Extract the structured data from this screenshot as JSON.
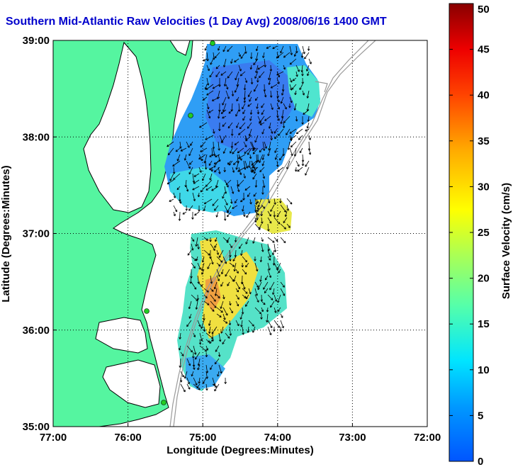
{
  "title": "Southern Mid-Atlantic Raw Velocities (1 Day Avg) 2008/06/16 1400 GMT",
  "map": {
    "xlabel": "Longitude (Degrees:Minutes)",
    "ylabel": "Latitude (Degrees:Minutes)",
    "lon_range": [
      -77,
      -72
    ],
    "lat_range": [
      35,
      39
    ],
    "lon_ticks": [
      "77:00",
      "76:00",
      "75:00",
      "74:00",
      "73:00",
      "72:00"
    ],
    "lat_ticks": [
      "35:00",
      "36:00",
      "37:00",
      "38:00",
      "39:00"
    ],
    "grid": "dotted",
    "colors": {
      "land": "#55f5a0",
      "water": "#ffffff",
      "coast": "#000000",
      "bathymetry": "#999999",
      "station": "#22cc22"
    }
  },
  "colorbar": {
    "label": "Surface Velocity (cm/s)",
    "min": 0,
    "max": 50,
    "ticks": [
      "0",
      "5",
      "10",
      "15",
      "20",
      "25",
      "30",
      "35",
      "40",
      "45",
      "50"
    ],
    "colormap": "jet"
  }
}
